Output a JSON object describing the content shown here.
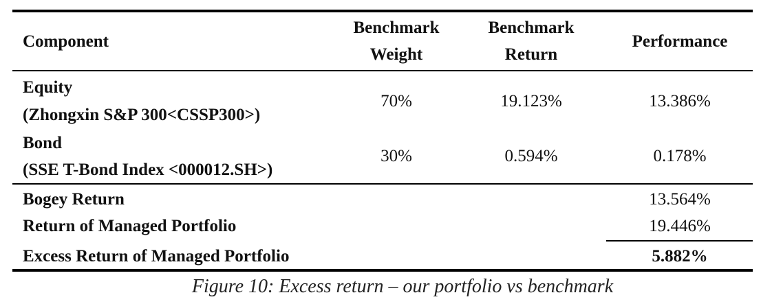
{
  "table": {
    "headers": {
      "component": "Component",
      "weight_line1": "Benchmark",
      "weight_line2": "Weight",
      "return_line1": "Benchmark",
      "return_line2": "Return",
      "performance": "Performance"
    },
    "rows": [
      {
        "name_line1": "Equity",
        "name_line2": "(Zhongxin S&P 300<CSSP300>)",
        "weight": "70%",
        "return": "19.123%",
        "performance": "13.386%"
      },
      {
        "name_line1": "Bond",
        "name_line2": "(SSE T-Bond Index <000012.SH>)",
        "weight": "30%",
        "return": "0.594%",
        "performance": "0.178%"
      }
    ],
    "summary": [
      {
        "label": "Bogey Return",
        "value": "13.564%"
      },
      {
        "label": "Return of Managed Portfolio",
        "value": "19.446%"
      },
      {
        "label": "Excess Return of Managed Portfolio",
        "value": "5.882%"
      }
    ]
  },
  "caption": "Figure 10: Excess return – our portfolio vs benchmark"
}
